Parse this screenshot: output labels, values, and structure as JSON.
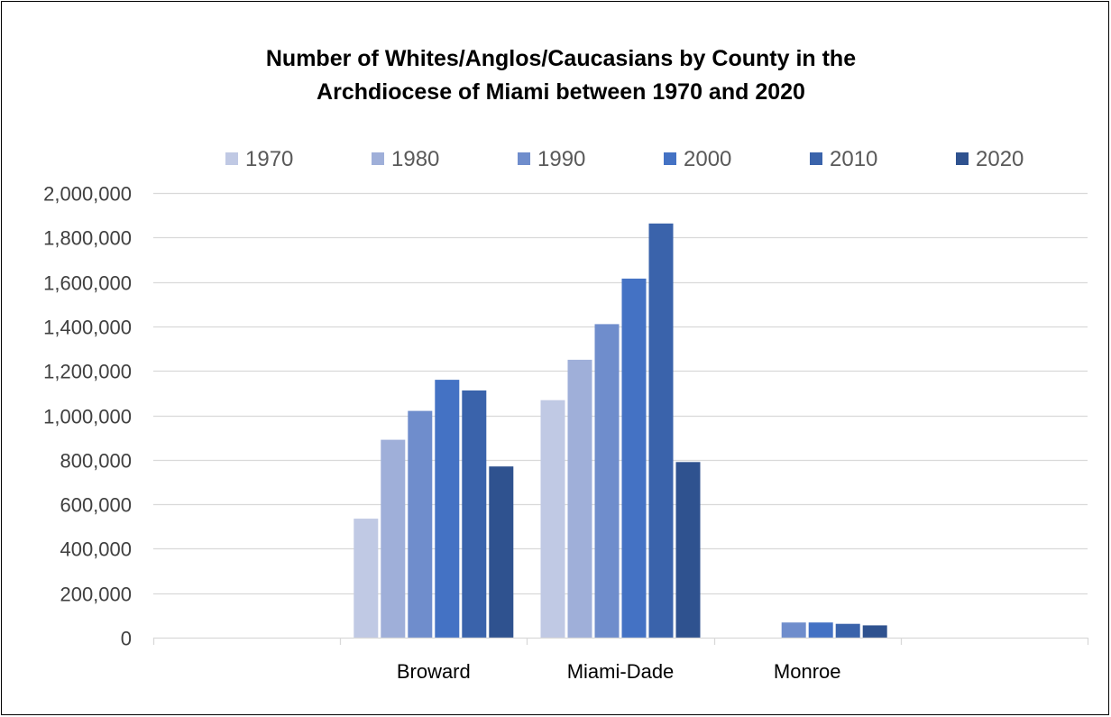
{
  "chart_data": {
    "type": "bar",
    "title_lines": [
      "Number of Whites/Anglos/Caucasians by County in the",
      "Archdiocese of Miami between 1970 and 2020"
    ],
    "categories": [
      "",
      "Broward",
      "Miami-Dade",
      "Monroe",
      ""
    ],
    "series": [
      {
        "name": "1970",
        "color": "#c0c9e4",
        "values": [
          0,
          535000,
          1068000,
          0,
          0
        ]
      },
      {
        "name": "1980",
        "color": "#9fafd9",
        "values": [
          0,
          890000,
          1250000,
          0,
          0
        ]
      },
      {
        "name": "1990",
        "color": "#6f8dcc",
        "values": [
          0,
          1020000,
          1410000,
          68000,
          0
        ]
      },
      {
        "name": "2000",
        "color": "#4472c4",
        "values": [
          0,
          1160000,
          1615000,
          68000,
          0
        ]
      },
      {
        "name": "2010",
        "color": "#3a63ab",
        "values": [
          0,
          1112000,
          1863000,
          62000,
          0
        ]
      },
      {
        "name": "2020",
        "color": "#2f528f",
        "values": [
          0,
          770000,
          790000,
          55000,
          0
        ]
      }
    ],
    "y_ticks": [
      "0",
      "200,000",
      "400,000",
      "600,000",
      "800,000",
      "1,000,000",
      "1,200,000",
      "1,400,000",
      "1,600,000",
      "1,800,000",
      "2,000,000"
    ],
    "ylim": [
      0,
      2000000
    ],
    "grid": true,
    "legend_position": "top",
    "xlabel": "",
    "ylabel": ""
  }
}
